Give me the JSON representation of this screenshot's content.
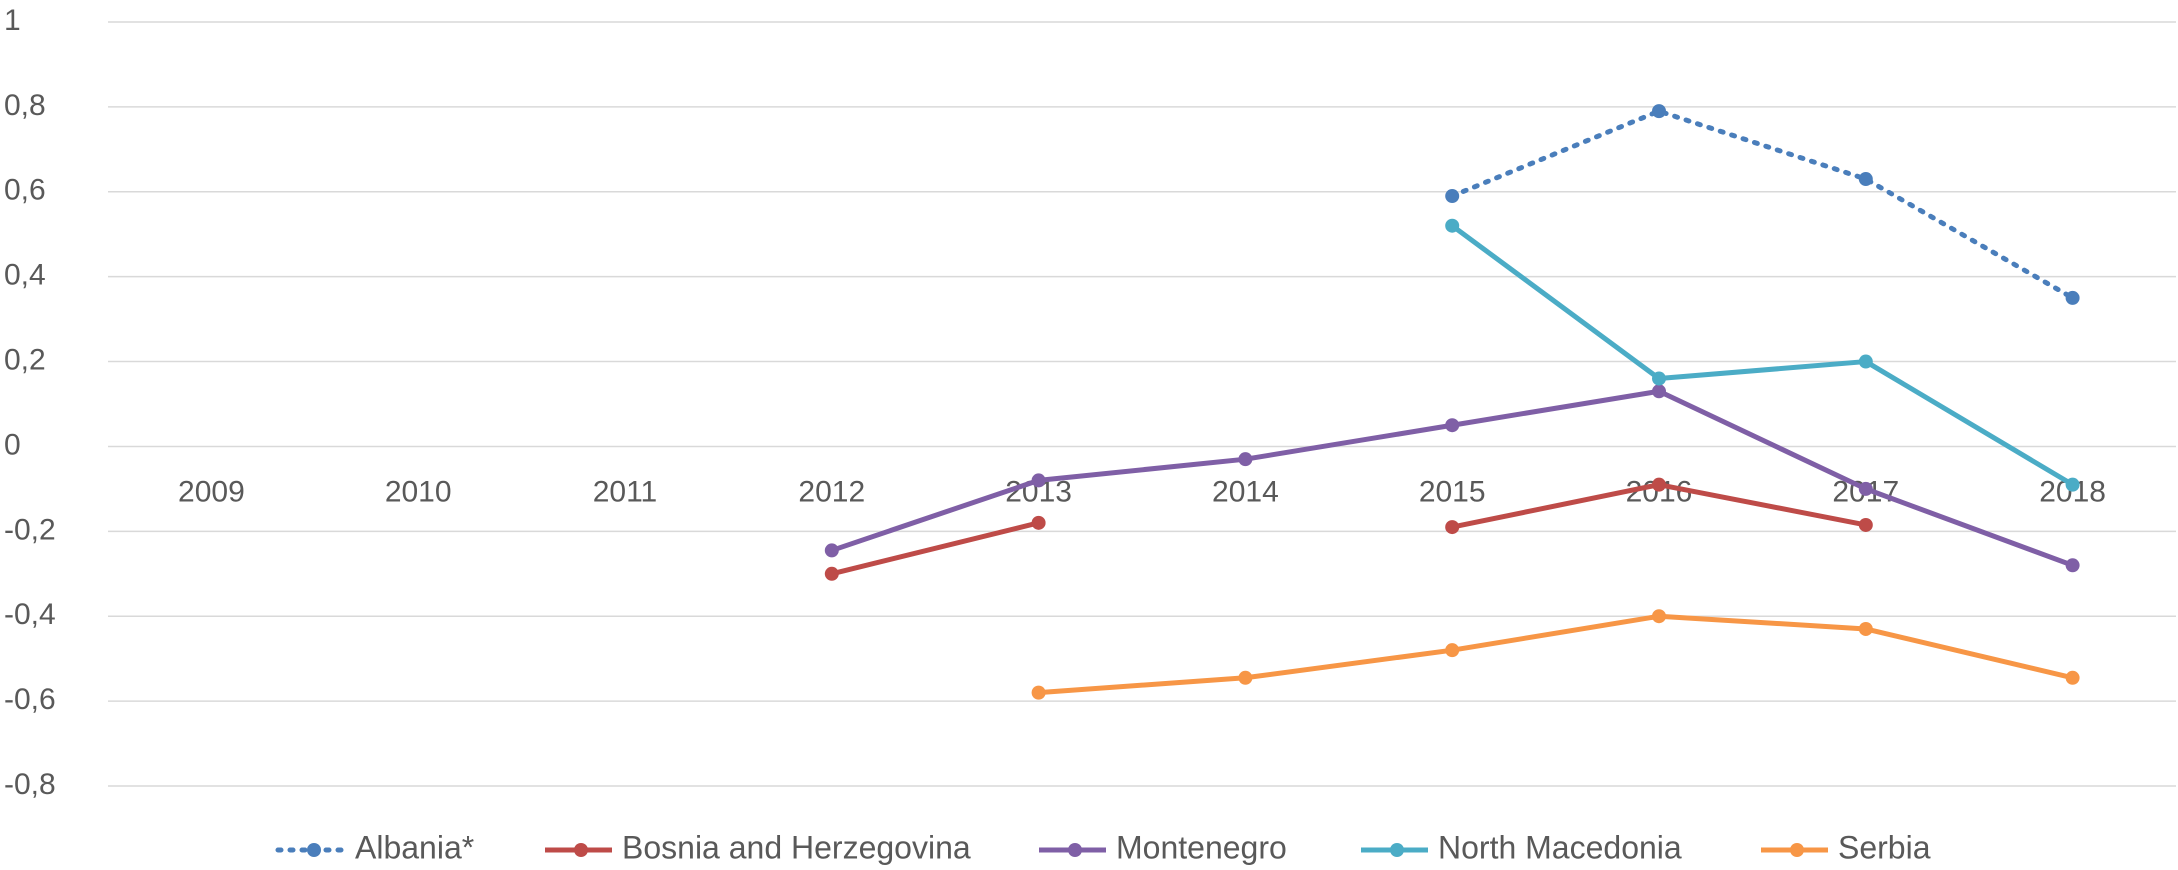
{
  "chart_data": {
    "type": "line",
    "categories": [
      "2009",
      "2010",
      "2011",
      "2012",
      "2013",
      "2014",
      "2015",
      "2016",
      "2017",
      "2018"
    ],
    "ylim": [
      -0.8,
      1
    ],
    "yticks": [
      {
        "value": -0.8,
        "label": "-0,8"
      },
      {
        "value": -0.6,
        "label": "-0,6"
      },
      {
        "value": -0.4,
        "label": "-0,4"
      },
      {
        "value": -0.2,
        "label": "-0,2"
      },
      0,
      {
        "value": 0.2,
        "label": "0,2"
      },
      {
        "value": 0.4,
        "label": "0,4"
      },
      {
        "value": 0.6,
        "label": "0,6"
      },
      {
        "value": 0.8,
        "label": "0,8"
      },
      1
    ],
    "grid": true,
    "legend": "bottom",
    "series": [
      {
        "name": "Albania*",
        "color": "#4a7ebb",
        "line_style": "dotted",
        "values": [
          null,
          null,
          null,
          null,
          null,
          null,
          0.59,
          0.79,
          0.63,
          0.35
        ]
      },
      {
        "name": "Bosnia and Herzegovina",
        "color": "#be4b48",
        "line_style": "solid",
        "values": [
          null,
          null,
          null,
          -0.3,
          -0.18,
          null,
          -0.19,
          -0.09,
          -0.185,
          null
        ]
      },
      {
        "name": "Montenegro",
        "color": "#7f5fa6",
        "line_style": "solid",
        "values": [
          null,
          null,
          null,
          -0.245,
          -0.08,
          -0.03,
          0.05,
          0.13,
          -0.1,
          -0.28
        ]
      },
      {
        "name": "North Macedonia",
        "color": "#4bacc6",
        "line_style": "solid",
        "values": [
          null,
          null,
          null,
          null,
          null,
          null,
          0.52,
          0.16,
          0.2,
          -0.09
        ]
      },
      {
        "name": "Serbia",
        "color": "#f79646",
        "line_style": "solid",
        "values": [
          null,
          null,
          null,
          null,
          -0.58,
          -0.545,
          -0.48,
          -0.4,
          -0.43,
          -0.545
        ]
      }
    ]
  }
}
